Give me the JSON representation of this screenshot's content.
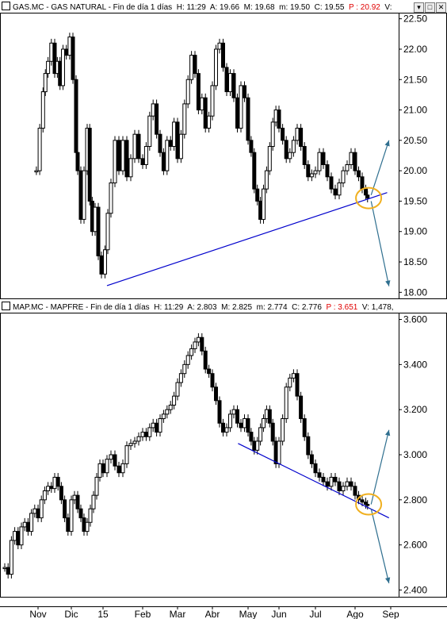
{
  "colors": {
    "candle": "#000000",
    "trendline": "#0000cc",
    "projection": "#2f6f8f",
    "highlight_circle": "#f0b020",
    "last_value_text": "#e00000",
    "panel_border": "#000000"
  },
  "x_axis": {
    "months": [
      "Nov",
      "Dic",
      "15",
      "Feb",
      "Mar",
      "Abr",
      "May",
      "Jun",
      "Jul",
      "Ago",
      "Sep"
    ]
  },
  "panels": [
    {
      "name": "gas-natural",
      "header": {
        "title": "GAS.MC - GAS NATURAL - Fin de día 1 días",
        "H": "H: 11:29",
        "A": "A: 19.66",
        "M": "M: 19.68",
        "m": "m: 19.50",
        "C": "C: 19.55",
        "P": "P : 20.92",
        "V": "V:"
      },
      "window_buttons": [
        "▾",
        "□",
        "✕"
      ]
    },
    {
      "name": "mapfre",
      "header": {
        "title": "MAP.MC - MAPFRE - Fin de día 1 días",
        "H": "H: 11:29",
        "A": "A: 2.803",
        "M": "M: 2.825",
        "m": "m: 2.774",
        "C": "C: 2.776",
        "P": "P : 3.651",
        "V": "V: 1,478,"
      },
      "window_buttons": []
    }
  ],
  "chart_data": [
    {
      "type": "line",
      "title": "GAS.MC - GAS NATURAL - Fin de día 1 días",
      "representation": "daily candlesticks",
      "x_categories": [
        "Nov",
        "Dic",
        "15",
        "Feb",
        "Mar",
        "Abr",
        "May",
        "Jun",
        "Jul",
        "Ago",
        "Sep"
      ],
      "ylim": [
        17.9,
        22.6
      ],
      "y_ticks": [
        "22.50",
        "22.00",
        "21.50",
        "21.00",
        "20.50",
        "20.00",
        "19.50",
        "19.00",
        "18.50",
        "18.00"
      ],
      "y_axis_position": "right",
      "grid": false,
      "series": [
        {
          "x": [
            -0.05,
            0.05,
            0.15,
            0.22,
            0.3,
            0.4,
            0.5,
            0.58,
            0.66,
            0.75,
            0.85,
            0.95,
            1.05,
            1.15,
            1.2,
            1.3,
            1.4,
            1.5,
            1.58,
            1.66,
            1.75,
            1.85,
            1.95,
            2.05,
            2.12,
            2.2,
            2.3,
            2.4,
            2.5,
            2.6,
            2.7,
            2.8,
            2.9,
            3.0,
            3.1,
            3.2,
            3.3,
            3.4,
            3.5,
            3.6,
            3.7,
            3.8,
            3.9,
            4.0,
            4.1,
            4.2,
            4.3,
            4.4,
            4.5,
            4.6,
            4.7,
            4.8,
            4.9,
            5.0,
            5.1,
            5.2,
            5.3,
            5.4,
            5.5,
            5.6,
            5.7,
            5.8,
            5.9,
            6.0,
            6.1,
            6.2,
            6.3,
            6.4,
            6.5,
            6.6,
            6.7,
            6.8,
            6.9,
            7.0,
            7.1,
            7.2,
            7.3,
            7.4,
            7.5,
            7.6,
            7.7,
            7.8,
            7.9,
            8.0,
            8.1,
            8.2,
            8.3,
            8.4,
            8.5,
            8.6,
            8.7,
            8.8,
            8.9,
            9.0,
            9.1,
            9.2,
            9.3,
            9.35
          ],
          "y": [
            20.0,
            20.7,
            21.3,
            21.6,
            21.8,
            22.1,
            21.6,
            21.8,
            21.4,
            22.0,
            21.9,
            22.2,
            21.5,
            20.3,
            20.0,
            19.2,
            20.0,
            20.7,
            19.5,
            19.0,
            19.4,
            18.6,
            18.3,
            18.7,
            19.3,
            19.8,
            20.5,
            20.0,
            20.5,
            19.9,
            20.2,
            20.6,
            20.2,
            20.1,
            20.4,
            20.9,
            21.1,
            20.6,
            20.3,
            20.0,
            20.5,
            20.4,
            20.8,
            20.2,
            20.6,
            21.1,
            21.5,
            21.9,
            21.6,
            21.0,
            21.2,
            20.7,
            20.9,
            21.4,
            22.0,
            22.1,
            21.7,
            21.3,
            21.6,
            21.2,
            20.7,
            21.4,
            21.2,
            20.5,
            20.3,
            19.7,
            19.5,
            19.2,
            19.7,
            20.0,
            20.4,
            20.8,
            21.0,
            20.7,
            20.5,
            20.2,
            20.3,
            20.5,
            20.7,
            20.4,
            20.1,
            19.9,
            19.95,
            20.0,
            20.3,
            20.1,
            19.9,
            19.7,
            19.6,
            19.8,
            20.0,
            20.1,
            20.3,
            20.0,
            19.9,
            19.7,
            19.6,
            19.55
          ]
        }
      ],
      "trendline": {
        "x": [
          2.1,
          9.9
        ],
        "y": [
          18.11,
          19.64
        ]
      },
      "projections": [
        {
          "x": [
            9.45,
            9.95
          ],
          "y": [
            19.6,
            20.5
          ]
        },
        {
          "x": [
            9.45,
            9.95
          ],
          "y": [
            19.5,
            18.1
          ]
        }
      ],
      "highlight": {
        "x": 9.38,
        "y": 19.55
      }
    },
    {
      "type": "line",
      "title": "MAP.MC - MAPFRE - Fin de día 1 días",
      "representation": "daily candlesticks",
      "x_categories": [
        "Nov",
        "Dic",
        "15",
        "Feb",
        "Mar",
        "Abr",
        "May",
        "Jun",
        "Jul",
        "Ago",
        "Sep"
      ],
      "ylim": [
        2.37,
        3.63
      ],
      "y_ticks": [
        "3.600",
        "3.400",
        "3.200",
        "3.000",
        "2.800",
        "2.600",
        "2.400"
      ],
      "y_axis_position": "right",
      "grid": false,
      "series": [
        {
          "x": [
            -1.0,
            -0.9,
            -0.8,
            -0.7,
            -0.6,
            -0.5,
            -0.4,
            -0.3,
            -0.2,
            -0.1,
            0.0,
            0.1,
            0.2,
            0.3,
            0.4,
            0.5,
            0.6,
            0.7,
            0.8,
            0.9,
            1.0,
            1.1,
            1.2,
            1.3,
            1.4,
            1.5,
            1.6,
            1.7,
            1.8,
            1.9,
            2.0,
            2.1,
            2.2,
            2.3,
            2.4,
            2.5,
            2.6,
            2.7,
            2.8,
            2.9,
            3.0,
            3.1,
            3.2,
            3.3,
            3.4,
            3.5,
            3.6,
            3.7,
            3.8,
            3.9,
            4.0,
            4.1,
            4.2,
            4.3,
            4.4,
            4.5,
            4.6,
            4.7,
            4.8,
            4.9,
            5.0,
            5.1,
            5.2,
            5.3,
            5.4,
            5.5,
            5.6,
            5.7,
            5.8,
            5.9,
            6.0,
            6.1,
            6.2,
            6.3,
            6.4,
            6.5,
            6.6,
            6.7,
            6.8,
            6.9,
            7.0,
            7.1,
            7.2,
            7.3,
            7.4,
            7.5,
            7.6,
            7.7,
            7.8,
            7.9,
            8.0,
            8.1,
            8.2,
            8.3,
            8.4,
            8.5,
            8.6,
            8.7,
            8.8,
            8.9,
            9.0,
            9.1,
            9.2,
            9.3,
            9.35
          ],
          "y": [
            2.5,
            2.47,
            2.62,
            2.66,
            2.6,
            2.68,
            2.7,
            2.66,
            2.74,
            2.76,
            2.72,
            2.8,
            2.84,
            2.86,
            2.85,
            2.9,
            2.86,
            2.8,
            2.72,
            2.66,
            2.8,
            2.82,
            2.76,
            2.72,
            2.66,
            2.7,
            2.76,
            2.82,
            2.9,
            2.96,
            2.92,
            2.98,
            3.0,
            2.95,
            2.92,
            2.96,
            3.04,
            3.05,
            3.06,
            3.08,
            3.1,
            3.08,
            3.12,
            3.14,
            3.1,
            3.16,
            3.18,
            3.2,
            3.22,
            3.26,
            3.32,
            3.36,
            3.4,
            3.44,
            3.47,
            3.5,
            3.52,
            3.46,
            3.38,
            3.36,
            3.3,
            3.24,
            3.14,
            3.1,
            3.12,
            3.18,
            3.2,
            3.14,
            3.12,
            3.16,
            3.1,
            3.06,
            3.02,
            3.06,
            3.12,
            3.16,
            3.2,
            3.14,
            3.06,
            2.96,
            3.06,
            3.16,
            3.3,
            3.34,
            3.36,
            3.26,
            3.16,
            3.08,
            3.0,
            2.96,
            2.92,
            2.9,
            2.88,
            2.86,
            2.9,
            2.88,
            2.84,
            2.86,
            2.88,
            2.86,
            2.82,
            2.8,
            2.79,
            2.78,
            2.776
          ]
        }
      ],
      "trendline": {
        "x": [
          5.72,
          9.95
        ],
        "y": [
          3.05,
          2.72
        ]
      },
      "projections": [
        {
          "x": [
            9.45,
            9.95
          ],
          "y": [
            2.78,
            3.11
          ]
        },
        {
          "x": [
            9.45,
            9.95
          ],
          "y": [
            2.76,
            2.43
          ]
        }
      ],
      "highlight": {
        "x": 9.38,
        "y": 2.78
      }
    }
  ]
}
